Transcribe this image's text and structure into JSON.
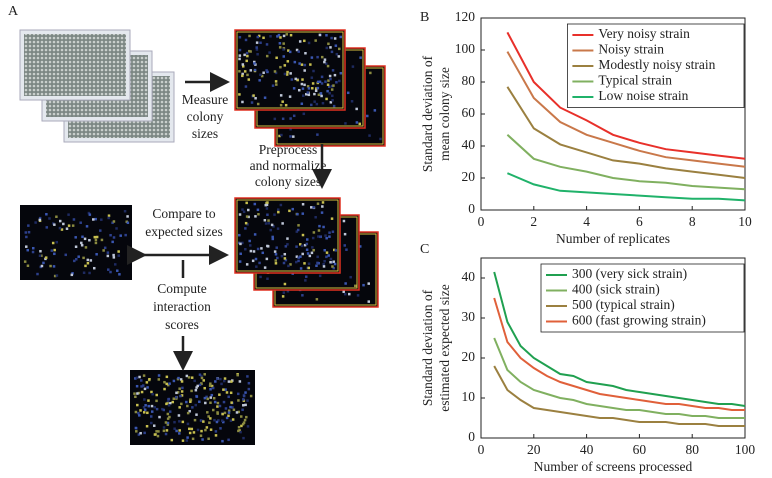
{
  "panel_a": {
    "label": "A",
    "measure": [
      "Measure",
      "colony",
      "sizes"
    ],
    "preprocess": [
      "Preprocess",
      "and normalize",
      "colony sizes"
    ],
    "compare": [
      "Compare to",
      "expected sizes"
    ],
    "compute": [
      "Compute",
      "interaction",
      "scores"
    ]
  },
  "chart_data": [
    {
      "type": "line",
      "label": "B",
      "xlabel": "Number of replicates",
      "ylabel": [
        "Standard deviation of",
        "mean colony size"
      ],
      "x": [
        1,
        2,
        3,
        4,
        5,
        6,
        7,
        8,
        9,
        10
      ],
      "xlim": [
        0,
        10
      ],
      "xticks": [
        0,
        2,
        4,
        6,
        8,
        10
      ],
      "ylim": [
        0,
        120
      ],
      "yticks": [
        0,
        20,
        40,
        60,
        80,
        100,
        120
      ],
      "legend": "upper right",
      "series": [
        {
          "name": "Very noisy strain",
          "color": "#e8302a",
          "values": [
            111,
            80,
            64,
            56,
            47,
            42,
            38,
            36,
            34,
            32
          ]
        },
        {
          "name": "Noisy strain",
          "color": "#c9784a",
          "values": [
            99,
            70,
            55,
            47,
            42,
            37,
            33,
            31,
            29,
            27
          ]
        },
        {
          "name": "Modestly noisy strain",
          "color": "#9b8040",
          "values": [
            77,
            51,
            41,
            36,
            31,
            29,
            26,
            24,
            22,
            20
          ]
        },
        {
          "name": "Typical strain",
          "color": "#80b060",
          "values": [
            47,
            32,
            27,
            24,
            20,
            18,
            17,
            15,
            14,
            13
          ]
        },
        {
          "name": "Low noise strain",
          "color": "#20b26a",
          "values": [
            23,
            16,
            12,
            11,
            10,
            9,
            8,
            7,
            7,
            6
          ]
        }
      ]
    },
    {
      "type": "line",
      "label": "C",
      "xlabel": "Number of screens processed",
      "ylabel": [
        "Standard deviation of",
        "estimated expected size"
      ],
      "x": [
        5,
        10,
        15,
        20,
        25,
        30,
        35,
        40,
        45,
        50,
        55,
        60,
        65,
        70,
        75,
        80,
        85,
        90,
        95,
        100
      ],
      "xlim": [
        0,
        100
      ],
      "xticks": [
        0,
        20,
        40,
        60,
        80,
        100
      ],
      "ylim": [
        0,
        45
      ],
      "yticks": [
        0,
        10,
        20,
        30,
        40
      ],
      "legend": "upper right",
      "series": [
        {
          "name": "300 (very sick strain)",
          "color": "#20a050",
          "values": [
            41.5,
            29,
            23,
            20,
            18,
            16,
            15.5,
            14,
            13.5,
            13,
            12,
            11.5,
            11,
            10.5,
            10,
            9.5,
            9,
            8.5,
            8.5,
            8
          ]
        },
        {
          "name": "400 (sick strain)",
          "color": "#80b060",
          "values": [
            25,
            17,
            14,
            12,
            11,
            10,
            9.5,
            8.5,
            8,
            7.5,
            7,
            7,
            6.5,
            6,
            6,
            5.5,
            5.5,
            5,
            5,
            5
          ]
        },
        {
          "name": "500 (typical strain)",
          "color": "#9b8040",
          "values": [
            18,
            12,
            9.5,
            7.5,
            7,
            6.5,
            6,
            5.5,
            5,
            5,
            4.5,
            4,
            4,
            4,
            3.5,
            3.5,
            3.5,
            3,
            3,
            3
          ]
        },
        {
          "name": "600 (fast growing strain)",
          "color": "#e0603a",
          "values": [
            35,
            24,
            20,
            17.5,
            15.5,
            14,
            13,
            12,
            11,
            10.5,
            10,
            9.5,
            9,
            8.5,
            8.5,
            8,
            7.5,
            7.5,
            7,
            7
          ]
        }
      ]
    }
  ]
}
